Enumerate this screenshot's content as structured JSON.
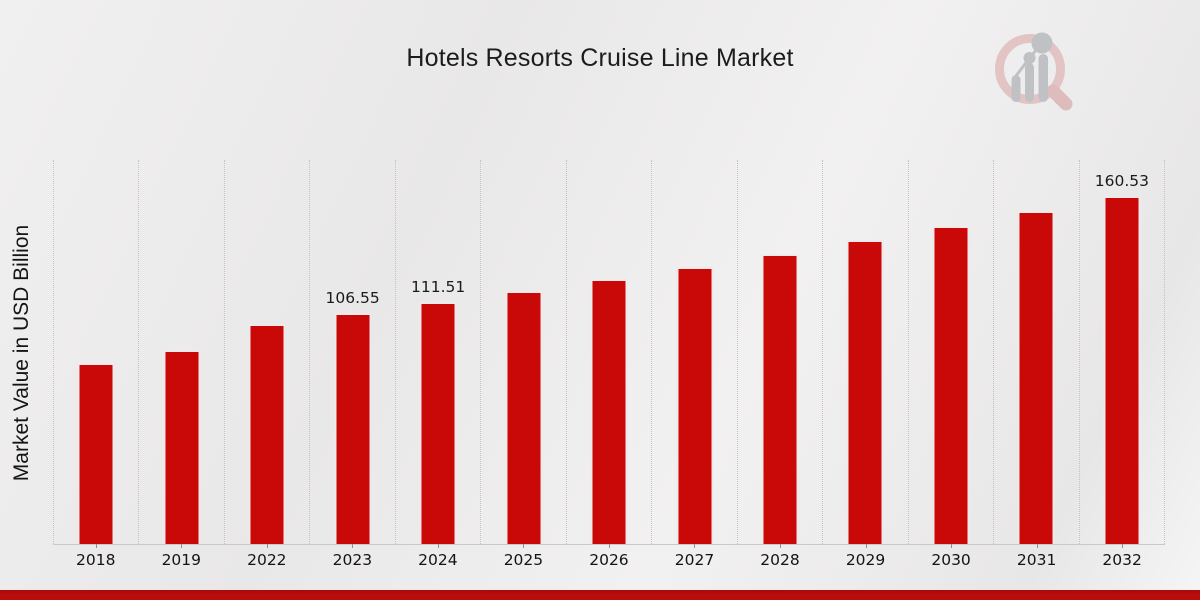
{
  "chart_data": {
    "type": "bar",
    "title": "Hotels Resorts Cruise Line Market",
    "ylabel": "Market Value in USD Billion",
    "xlabel": "",
    "categories": [
      "2018",
      "2019",
      "2022",
      "2023",
      "2024",
      "2025",
      "2026",
      "2027",
      "2028",
      "2029",
      "2030",
      "2031",
      "2032"
    ],
    "values": [
      83.4,
      89.5,
      101.6,
      106.55,
      111.51,
      116.7,
      122.1,
      127.8,
      133.8,
      140.0,
      146.5,
      153.4,
      160.53
    ],
    "bar_labels": [
      "",
      "",
      "",
      "106.55",
      "111.51",
      "",
      "",
      "",
      "",
      "",
      "",
      "",
      "160.53"
    ],
    "ylim": [
      0,
      177
    ],
    "grid": "vertical-dotted",
    "legend": "none",
    "bar_color": "#c90808",
    "bar_edge_color": "#f2e9e9",
    "accent_bar_color": "#bb0c0c",
    "background_color": "#ecebeb"
  },
  "branding": {
    "logo": "magnifier-bar-chart-watermark",
    "logo_ring_color": "#e2bdbd",
    "logo_glyph_color": "#b7babf"
  }
}
